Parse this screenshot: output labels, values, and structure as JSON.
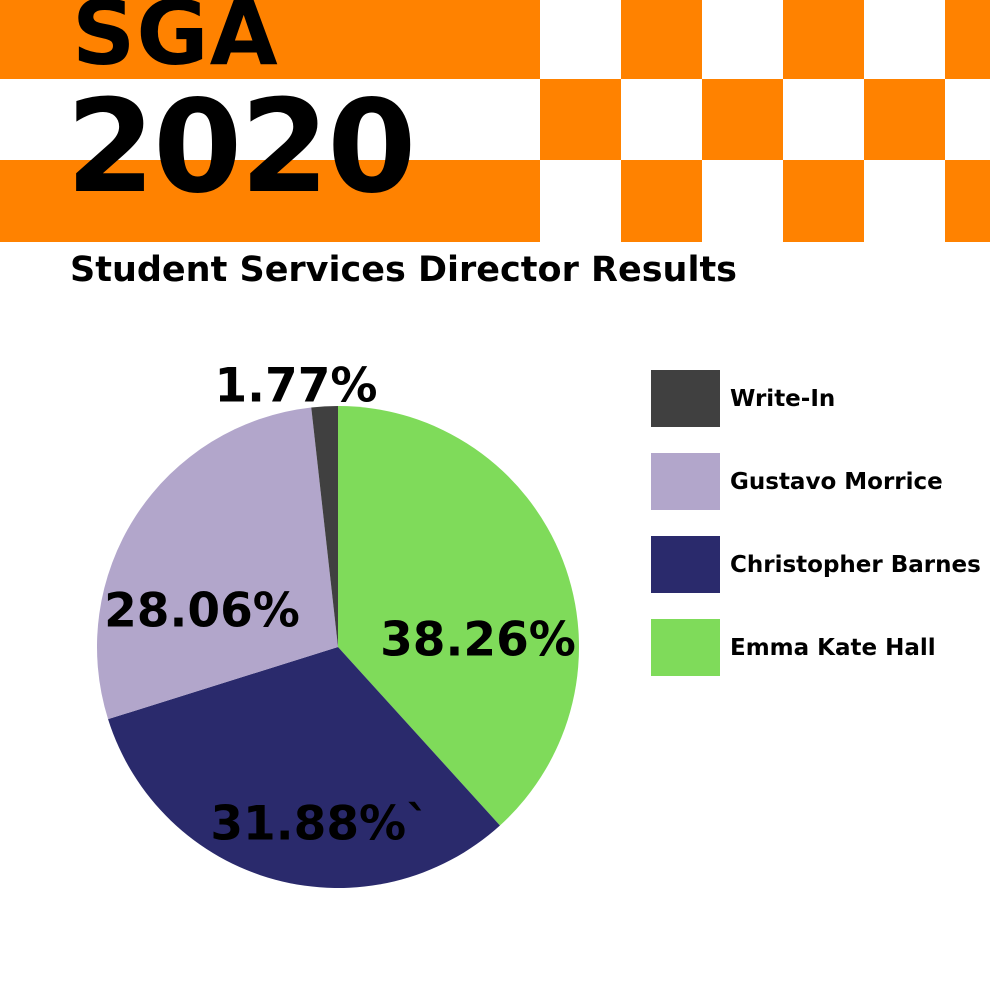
{
  "header": {
    "line1": "SGA",
    "line2": "2020",
    "subtitle": "Student Services Director Results"
  },
  "colors": {
    "orange": "#ff8200",
    "white": "#ffffff"
  },
  "chart_data": {
    "type": "pie",
    "title": "Student Services Director Results",
    "slices": [
      {
        "name": "Emma Kate Hall",
        "value": 38.26,
        "label": "38.26%",
        "color": "#7fdb5a"
      },
      {
        "name": "Christopher Barnes",
        "value": 31.88,
        "label": "31.88%`",
        "color": "#2a2a6c"
      },
      {
        "name": "Gustavo Morrice",
        "value": 28.06,
        "label": "28.06%",
        "color": "#b2a6cb"
      },
      {
        "name": "Write-In",
        "value": 1.77,
        "label": "1.77%",
        "color": "#404040"
      }
    ],
    "legend": [
      {
        "name": "Write-In",
        "color": "#404040"
      },
      {
        "name": "Gustavo Morrice",
        "color": "#b2a6cb"
      },
      {
        "name": "Christopher Barnes",
        "color": "#2a2a6c"
      },
      {
        "name": "Emma Kate Hall",
        "color": "#7fdb5a"
      }
    ],
    "legend_placement": "right"
  }
}
